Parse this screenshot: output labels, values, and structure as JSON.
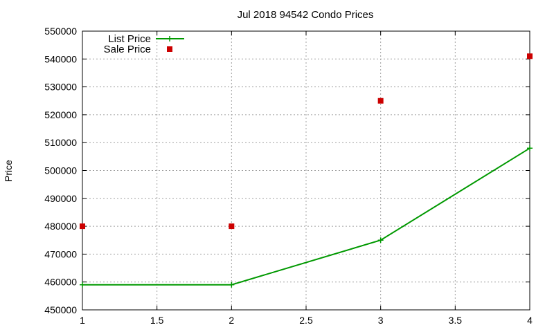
{
  "chart_data": {
    "type": "line",
    "title": "Jul 2018 94542 Condo Prices",
    "xlabel": "",
    "ylabel": "Price",
    "xlim": [
      1,
      4
    ],
    "ylim": [
      450000,
      550000
    ],
    "x_ticks": [
      1,
      1.5,
      2,
      2.5,
      3,
      3.5,
      4
    ],
    "x_tick_labels": [
      "1",
      "1.5",
      "2",
      "2.5",
      "3",
      "3.5",
      "4"
    ],
    "y_ticks": [
      450000,
      460000,
      470000,
      480000,
      490000,
      500000,
      510000,
      520000,
      530000,
      540000,
      550000
    ],
    "y_tick_labels": [
      "450000",
      "460000",
      "470000",
      "480000",
      "490000",
      "500000",
      "510000",
      "520000",
      "530000",
      "540000",
      "550000"
    ],
    "grid": true,
    "legend_position": "top-left",
    "series": [
      {
        "name": "List Price",
        "style": "line-with-plus-markers",
        "color": "#009900",
        "x": [
          1,
          2,
          3,
          4
        ],
        "values": [
          459000,
          459000,
          475000,
          508000
        ]
      },
      {
        "name": "Sale Price",
        "style": "square-markers",
        "color": "#cc0000",
        "x": [
          1,
          2,
          3,
          4
        ],
        "values": [
          480000,
          480000,
          525000,
          541000
        ]
      }
    ]
  }
}
